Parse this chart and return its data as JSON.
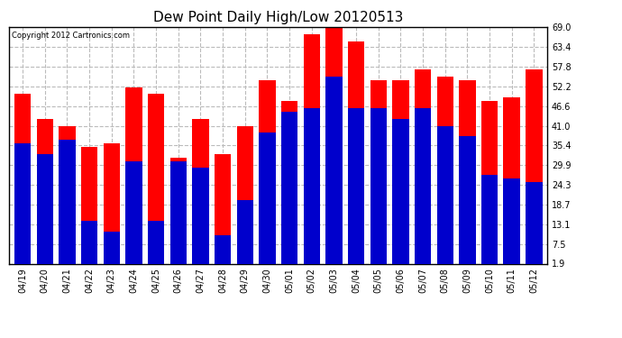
{
  "title": "Dew Point Daily High/Low 20120513",
  "copyright": "Copyright 2012 Cartronics.com",
  "dates": [
    "04/19",
    "04/20",
    "04/21",
    "04/22",
    "04/23",
    "04/24",
    "04/25",
    "04/26",
    "04/27",
    "04/28",
    "04/29",
    "04/30",
    "05/01",
    "05/02",
    "05/03",
    "05/04",
    "05/05",
    "05/06",
    "05/07",
    "05/08",
    "05/09",
    "05/10",
    "05/11",
    "05/12"
  ],
  "highs": [
    50,
    43,
    41,
    35,
    36,
    52,
    50,
    32,
    43,
    33,
    41,
    54,
    48,
    67,
    69,
    65,
    54,
    54,
    57,
    55,
    54,
    48,
    49,
    57
  ],
  "lows": [
    36,
    33,
    37,
    14,
    11,
    31,
    14,
    31,
    29,
    10,
    20,
    39,
    45,
    46,
    55,
    46,
    46,
    43,
    46,
    41,
    38,
    27,
    26,
    25
  ],
  "ymin": 1.9,
  "ymax": 69.0,
  "yticks": [
    1.9,
    7.5,
    13.1,
    18.7,
    24.3,
    29.9,
    35.4,
    41.0,
    46.6,
    52.2,
    57.8,
    63.4,
    69.0
  ],
  "high_color": "#ff0000",
  "low_color": "#0000cc",
  "bg_color": "#ffffff",
  "grid_color": "#bbbbbb",
  "title_fontsize": 11,
  "tick_fontsize": 7,
  "bar_width": 0.75
}
